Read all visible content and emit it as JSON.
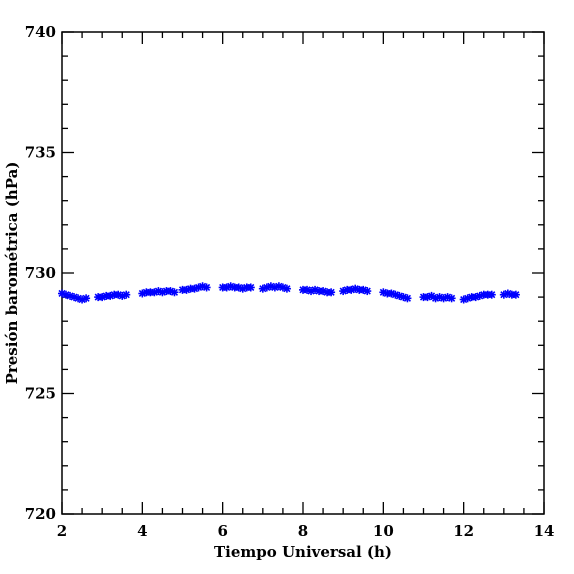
{
  "chart_data": {
    "type": "scatter",
    "xlabel": "Tiempo Universal (h)",
    "ylabel": "Presión barométrica (hPa)",
    "xlim": [
      2,
      14
    ],
    "ylim": [
      720,
      740
    ],
    "x_ticks": [
      2,
      4,
      6,
      8,
      10,
      12,
      14
    ],
    "y_ticks": [
      720,
      725,
      730,
      735,
      740
    ],
    "x_minor_step": 0.5,
    "y_minor_step": 1,
    "marker": "asterisk",
    "marker_color": "#0000ff",
    "grid": false,
    "series": [
      {
        "x": [
          2.0,
          2.1,
          2.2,
          2.3,
          2.4,
          2.5,
          2.6,
          2.9,
          3.0,
          3.1,
          3.2,
          3.3,
          3.4,
          3.5,
          3.6,
          4.0,
          4.1,
          4.2,
          4.3,
          4.4,
          4.5,
          4.6,
          4.7,
          4.8,
          5.0,
          5.1,
          5.2,
          5.3,
          5.4,
          5.5,
          5.6,
          6.0,
          6.1,
          6.2,
          6.3,
          6.4,
          6.5,
          6.6,
          6.7,
          7.0,
          7.1,
          7.2,
          7.3,
          7.4,
          7.5,
          7.6,
          8.0,
          8.1,
          8.2,
          8.3,
          8.4,
          8.5,
          8.6,
          8.7,
          9.0,
          9.1,
          9.2,
          9.3,
          9.4,
          9.5,
          9.6,
          10.0,
          10.1,
          10.2,
          10.3,
          10.4,
          10.5,
          10.6,
          11.0,
          11.1,
          11.2,
          11.3,
          11.4,
          11.5,
          11.6,
          11.7,
          12.0,
          12.1,
          12.2,
          12.3,
          12.4,
          12.5,
          12.6,
          12.7,
          13.0,
          13.1,
          13.2,
          13.3
        ],
        "y": [
          729.15,
          729.1,
          729.05,
          729.0,
          728.95,
          728.9,
          728.95,
          729.0,
          729.0,
          729.05,
          729.05,
          729.1,
          729.1,
          729.05,
          729.1,
          729.15,
          729.2,
          729.2,
          729.2,
          729.25,
          729.2,
          729.25,
          729.25,
          729.2,
          729.3,
          729.3,
          729.35,
          729.35,
          729.4,
          729.45,
          729.4,
          729.4,
          729.4,
          729.45,
          729.4,
          729.4,
          729.35,
          729.4,
          729.4,
          729.35,
          729.4,
          729.45,
          729.4,
          729.45,
          729.4,
          729.35,
          729.3,
          729.3,
          729.25,
          729.3,
          729.25,
          729.25,
          729.2,
          729.2,
          729.25,
          729.3,
          729.3,
          729.35,
          729.3,
          729.3,
          729.25,
          729.2,
          729.15,
          729.15,
          729.1,
          729.05,
          729.0,
          728.95,
          729.0,
          729.0,
          729.05,
          728.95,
          729.0,
          728.95,
          729.0,
          728.95,
          728.9,
          728.95,
          729.0,
          729.0,
          729.05,
          729.1,
          729.1,
          729.1,
          729.1,
          729.15,
          729.1,
          729.1
        ]
      }
    ]
  }
}
